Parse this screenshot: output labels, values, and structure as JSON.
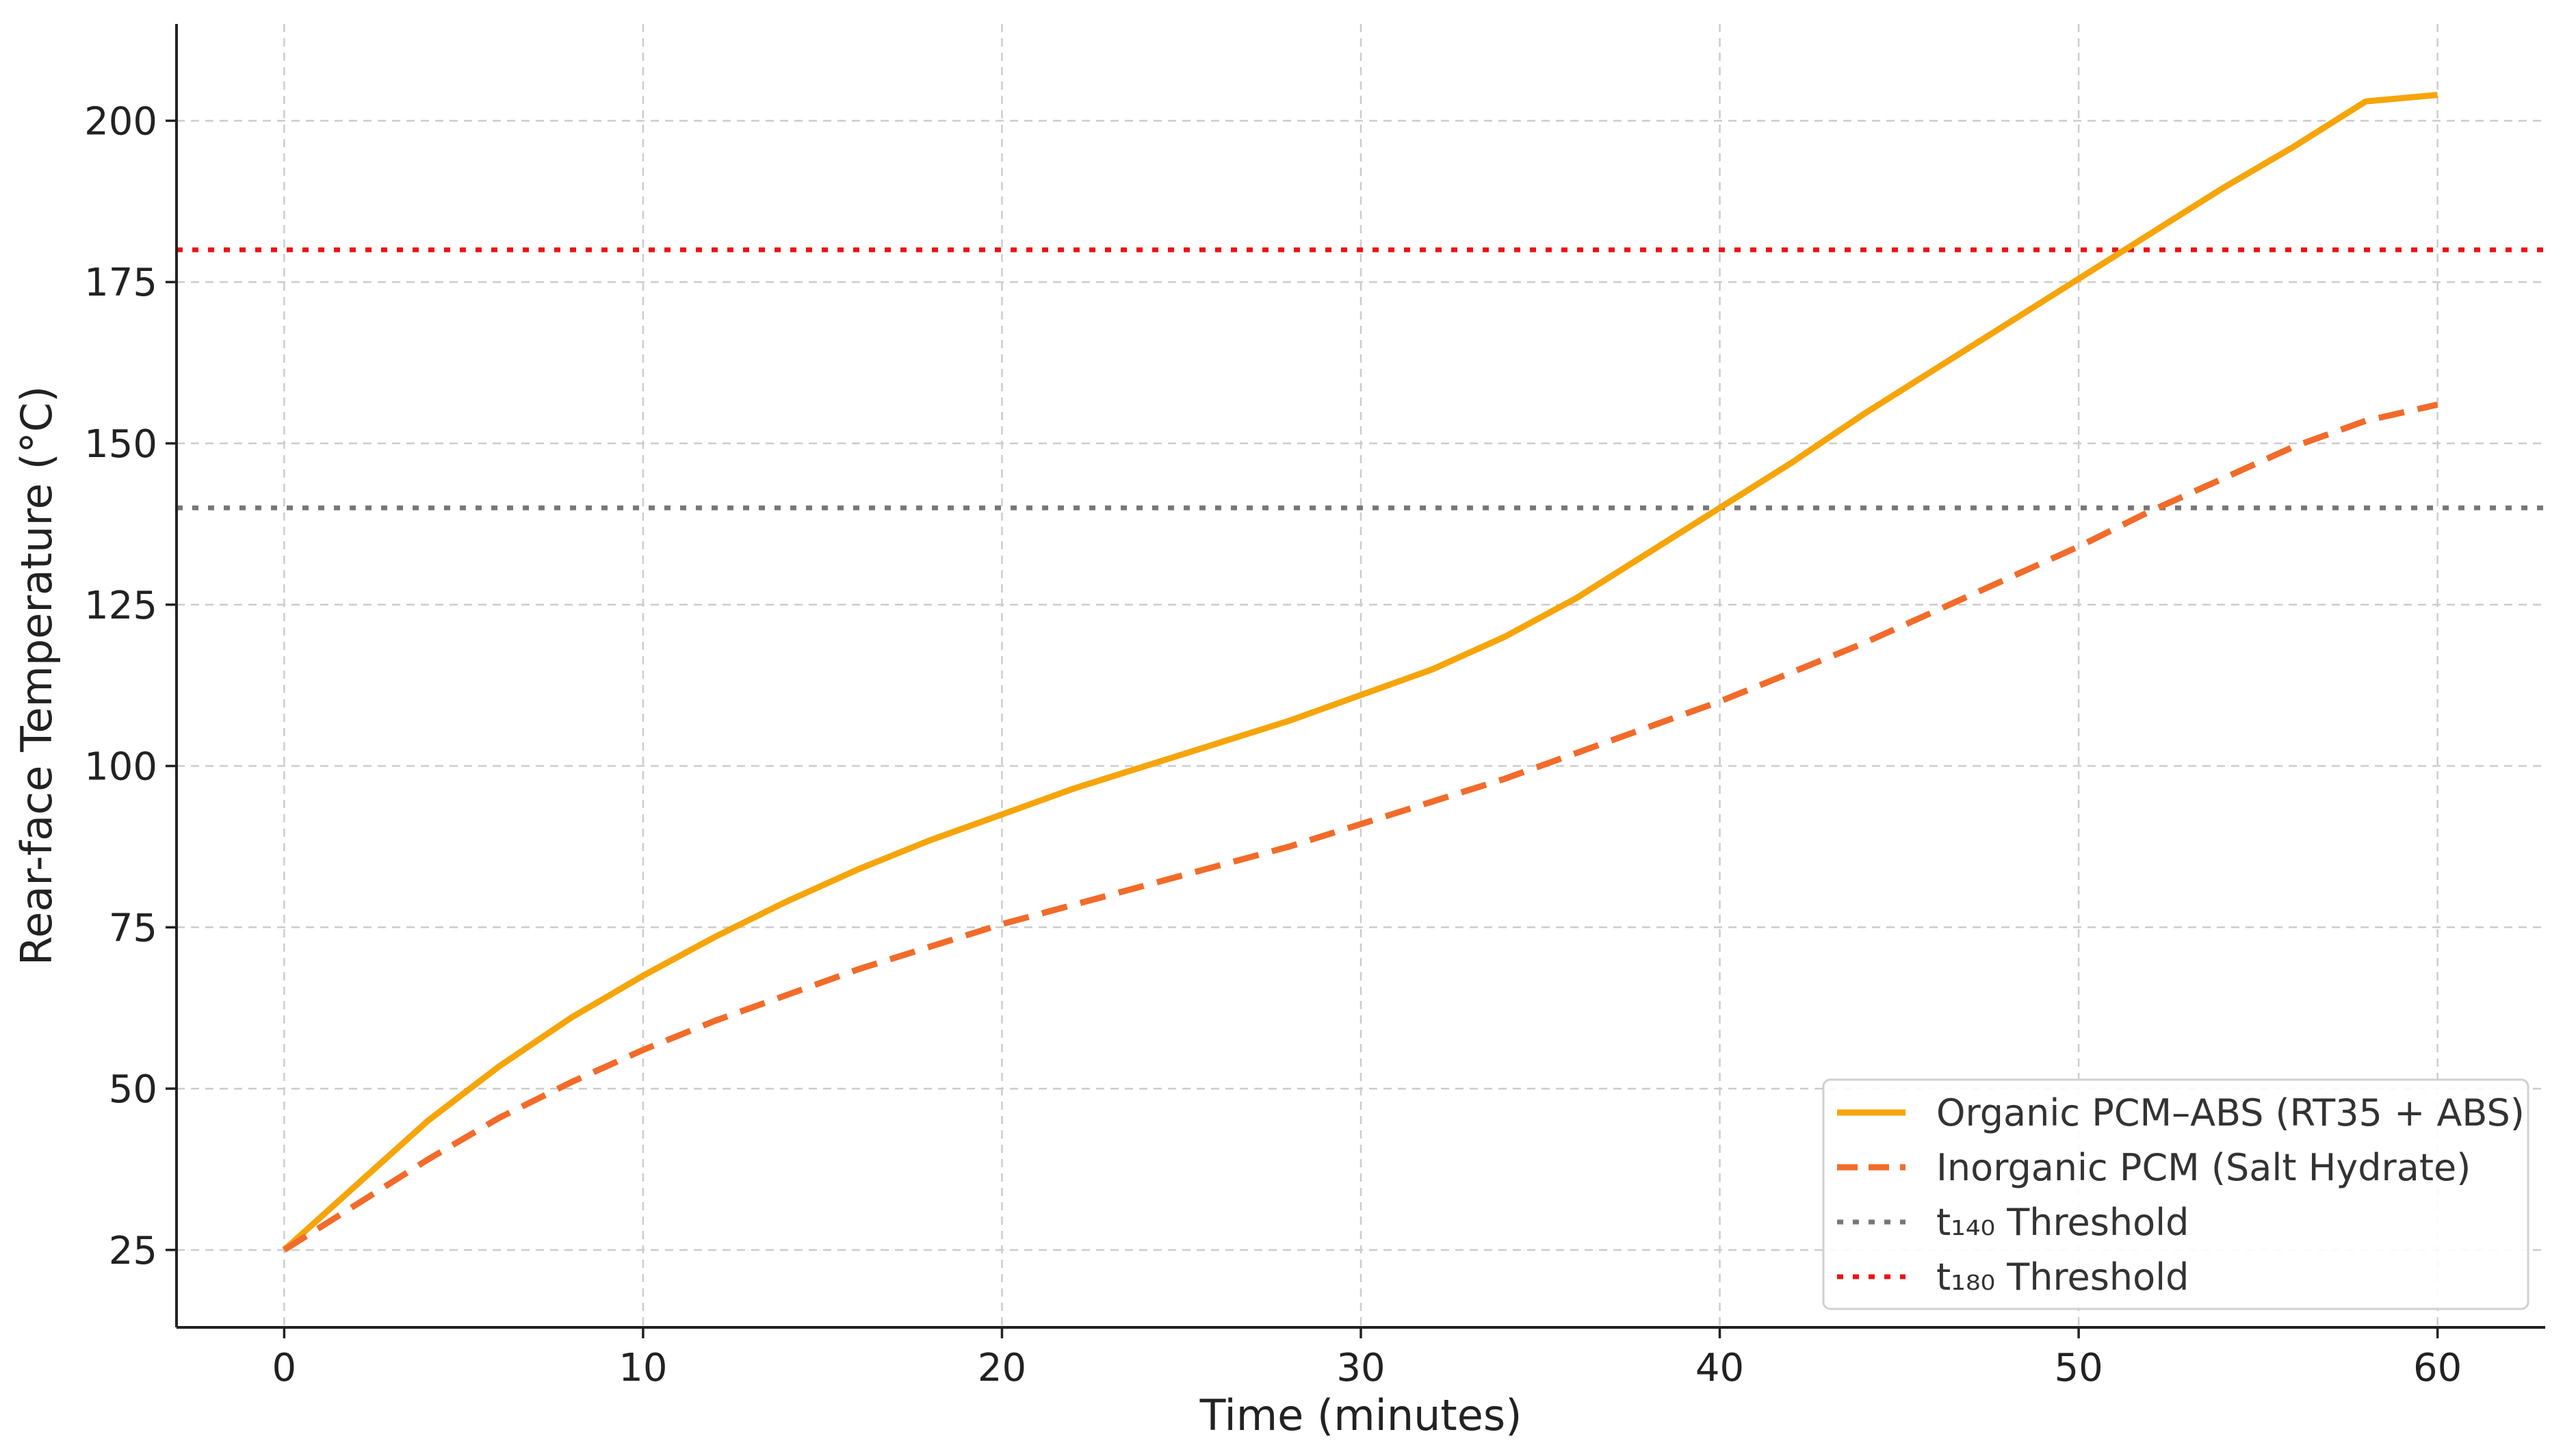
{
  "chart_data": {
    "type": "line",
    "title": "",
    "xlabel": "Time (minutes)",
    "ylabel": "Rear-face Temperature (°C)",
    "xlim": [
      -3,
      63
    ],
    "ylim": [
      13,
      215
    ],
    "x_ticks": [
      0,
      10,
      20,
      30,
      40,
      50,
      60
    ],
    "y_ticks": [
      25,
      50,
      75,
      100,
      125,
      150,
      175,
      200
    ],
    "grid": true,
    "legend_position": "lower-right",
    "series": [
      {
        "name": "Organic PCM–ABS (RT35 + ABS)",
        "color": "#F5A50A",
        "style": "solid",
        "x": [
          0,
          2,
          4,
          6,
          8,
          10,
          12,
          14,
          16,
          18,
          20,
          22,
          24,
          26,
          28,
          30,
          32,
          34,
          36,
          38,
          40,
          42,
          44,
          46,
          48,
          50,
          52,
          54,
          56,
          58,
          60
        ],
        "y": [
          25,
          35,
          45,
          53.5,
          61,
          67.5,
          73.5,
          79,
          84,
          88.5,
          92.5,
          96.5,
          100,
          103.5,
          107,
          111,
          115,
          120,
          126,
          133,
          140,
          147,
          154.5,
          161.5,
          168.5,
          175.5,
          182.5,
          189.5,
          196,
          203,
          204
        ]
      },
      {
        "name": "Inorganic PCM (Salt Hydrate)",
        "color": "#F26B2A",
        "style": "dashed",
        "x": [
          0,
          2,
          4,
          6,
          8,
          10,
          12,
          14,
          16,
          18,
          20,
          22,
          24,
          26,
          28,
          30,
          32,
          34,
          36,
          38,
          40,
          42,
          44,
          46,
          48,
          50,
          52,
          54,
          56,
          58,
          60
        ],
        "y": [
          25,
          32,
          39,
          45.5,
          51,
          56,
          60.5,
          64.5,
          68.5,
          72,
          75.5,
          78.5,
          81.5,
          84.5,
          87.5,
          91,
          94.5,
          98,
          102,
          106,
          110,
          114.5,
          119,
          124,
          129,
          134,
          139.5,
          144.5,
          149.5,
          153.5,
          156
        ]
      }
    ],
    "thresholds": [
      {
        "name": "t₁₄₀ Threshold",
        "y": 140,
        "color": "#777777",
        "style": "dotted"
      },
      {
        "name": "t₁₈₀ Threshold",
        "y": 180,
        "color": "#EE1111",
        "style": "dotted"
      }
    ]
  }
}
